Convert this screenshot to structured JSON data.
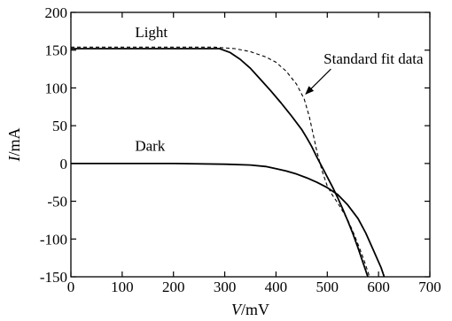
{
  "chart_data": {
    "type": "line",
    "title": "",
    "xlabel": {
      "var": "V",
      "unit": "/mV"
    },
    "ylabel": {
      "var": "I",
      "unit": "/mA"
    },
    "xlim": [
      0,
      700
    ],
    "ylim": [
      -150,
      200
    ],
    "xticks": [
      0,
      100,
      200,
      300,
      400,
      500,
      600,
      700
    ],
    "yticks": [
      -150,
      -100,
      -50,
      0,
      50,
      100,
      150,
      200
    ],
    "grid": false,
    "series": [
      {
        "name": "Light",
        "style": "solid",
        "points": [
          [
            0,
            152
          ],
          [
            100,
            152
          ],
          [
            200,
            152
          ],
          [
            290,
            152
          ],
          [
            310,
            147
          ],
          [
            330,
            138
          ],
          [
            350,
            126
          ],
          [
            370,
            111
          ],
          [
            390,
            96
          ],
          [
            410,
            80
          ],
          [
            430,
            63
          ],
          [
            450,
            45
          ],
          [
            460,
            34
          ],
          [
            470,
            22
          ],
          [
            480,
            8
          ],
          [
            490,
            -5
          ],
          [
            500,
            -18
          ],
          [
            510,
            -31
          ],
          [
            520,
            -45
          ],
          [
            530,
            -60
          ],
          [
            540,
            -76
          ],
          [
            550,
            -93
          ],
          [
            560,
            -112
          ],
          [
            570,
            -132
          ],
          [
            580,
            -152
          ]
        ]
      },
      {
        "name": "Dark",
        "style": "solid",
        "points": [
          [
            0,
            0
          ],
          [
            100,
            0
          ],
          [
            200,
            0
          ],
          [
            300,
            -1
          ],
          [
            350,
            -2
          ],
          [
            380,
            -4
          ],
          [
            400,
            -7
          ],
          [
            420,
            -10
          ],
          [
            440,
            -14
          ],
          [
            460,
            -19
          ],
          [
            480,
            -25
          ],
          [
            500,
            -32
          ],
          [
            520,
            -41
          ],
          [
            540,
            -55
          ],
          [
            560,
            -73
          ],
          [
            575,
            -92
          ],
          [
            590,
            -115
          ],
          [
            605,
            -138
          ],
          [
            612,
            -152
          ]
        ]
      },
      {
        "name": "Standard fit data",
        "style": "dashed",
        "points": [
          [
            0,
            154
          ],
          [
            100,
            154
          ],
          [
            200,
            154
          ],
          [
            280,
            154
          ],
          [
            320,
            152
          ],
          [
            350,
            148
          ],
          [
            380,
            141
          ],
          [
            400,
            134
          ],
          [
            420,
            122
          ],
          [
            440,
            105
          ],
          [
            455,
            85
          ],
          [
            465,
            62
          ],
          [
            472,
            40
          ],
          [
            480,
            15
          ],
          [
            490,
            -10
          ],
          [
            500,
            -30
          ],
          [
            510,
            -42
          ],
          [
            520,
            -52
          ],
          [
            530,
            -63
          ],
          [
            540,
            -75
          ],
          [
            550,
            -90
          ],
          [
            560,
            -107
          ],
          [
            570,
            -125
          ],
          [
            580,
            -145
          ],
          [
            583,
            -152
          ]
        ]
      }
    ],
    "annotations": [
      {
        "text": "Light",
        "at": [
          125,
          167
        ]
      },
      {
        "text": "Dark",
        "at": [
          125,
          17
        ]
      },
      {
        "text": "Standard fit data",
        "at": [
          590,
          132
        ],
        "arrow_to": [
          458,
          92
        ]
      }
    ]
  }
}
